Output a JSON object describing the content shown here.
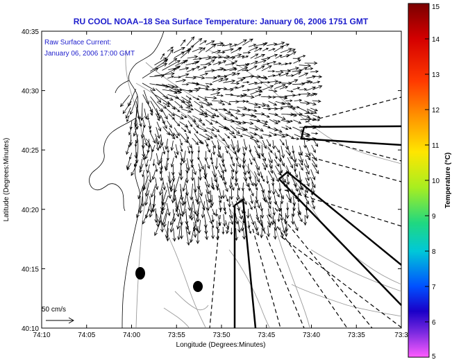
{
  "title": "RU COOL  NOAA–18  Sea Surface Temperature:  January 06, 2006 1751 GMT",
  "annotation": {
    "line1": "Raw Surface Current:",
    "line2": "January 06, 2006 17:00 GMT"
  },
  "scale_label": "50 cm/s",
  "map": {
    "xlabel": "Longitude (Degrees:Minutes)",
    "ylabel": "Latitude (Degrees:Minutes)",
    "lon_ticks": [
      "74:10",
      "74:05",
      "74:00",
      "73:55",
      "73:50",
      "73:45",
      "73:40",
      "73:35",
      "73:3"
    ],
    "lat_ticks": [
      "40:35",
      "40:30",
      "40:25",
      "40:20",
      "40:15",
      "40:10"
    ]
  },
  "colorbar": {
    "label": "Temperature (°C)",
    "ticks": [
      "15",
      "14",
      "13",
      "12",
      "11",
      "10",
      "9",
      "8",
      "7",
      "6",
      "5"
    ],
    "min": 5,
    "max": 15
  },
  "colors": {
    "title": "#1c1ccc",
    "arrows": "#000000",
    "contours": "#9a9a9a"
  }
}
